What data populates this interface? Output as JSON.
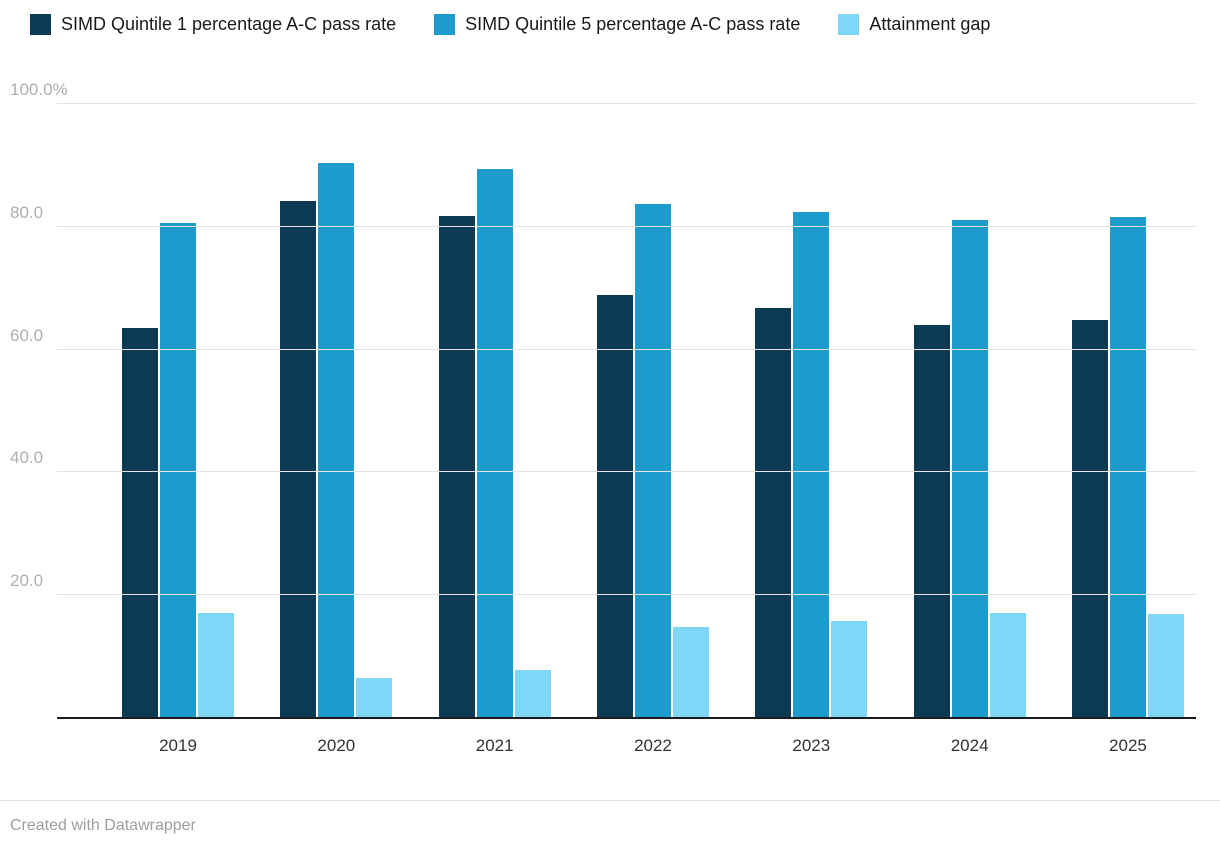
{
  "legend": {
    "items": [
      {
        "label": "SIMD Quintile 1 percentage A-C pass rate",
        "color": "#0d3a53"
      },
      {
        "label": "SIMD Quintile 5 percentage A-C pass rate",
        "color": "#1e9bcd"
      },
      {
        "label": "Attainment gap",
        "color": "#7fd6f7"
      }
    ]
  },
  "chart_data": {
    "type": "bar",
    "categories": [
      "2019",
      "2020",
      "2021",
      "2022",
      "2023",
      "2024",
      "2025"
    ],
    "series": [
      {
        "name": "SIMD Quintile 1 percentage A-C pass rate",
        "color": "#0d3a53",
        "values": [
          63.4,
          84.0,
          81.6,
          68.8,
          66.6,
          63.9,
          64.7
        ]
      },
      {
        "name": "SIMD Quintile 5 percentage A-C pass rate",
        "color": "#1e9bcd",
        "values": [
          80.4,
          90.3,
          89.3,
          83.5,
          82.2,
          80.9,
          81.5
        ]
      },
      {
        "name": "Attainment gap",
        "color": "#7fd6f7",
        "values": [
          17.0,
          6.3,
          7.7,
          14.7,
          15.6,
          17.0,
          16.8
        ]
      }
    ],
    "title": "",
    "xlabel": "",
    "ylabel": "",
    "ylim": [
      0,
      100
    ],
    "grid": true,
    "legend_position": "top",
    "yticks": [
      {
        "value": 100,
        "label": "100.0%"
      },
      {
        "value": 80,
        "label": "80.0"
      },
      {
        "value": 60,
        "label": "60.0"
      },
      {
        "value": 40,
        "label": "40.0"
      },
      {
        "value": 20,
        "label": "20.0"
      }
    ]
  },
  "footer": {
    "credit": "Created with Datawrapper"
  }
}
